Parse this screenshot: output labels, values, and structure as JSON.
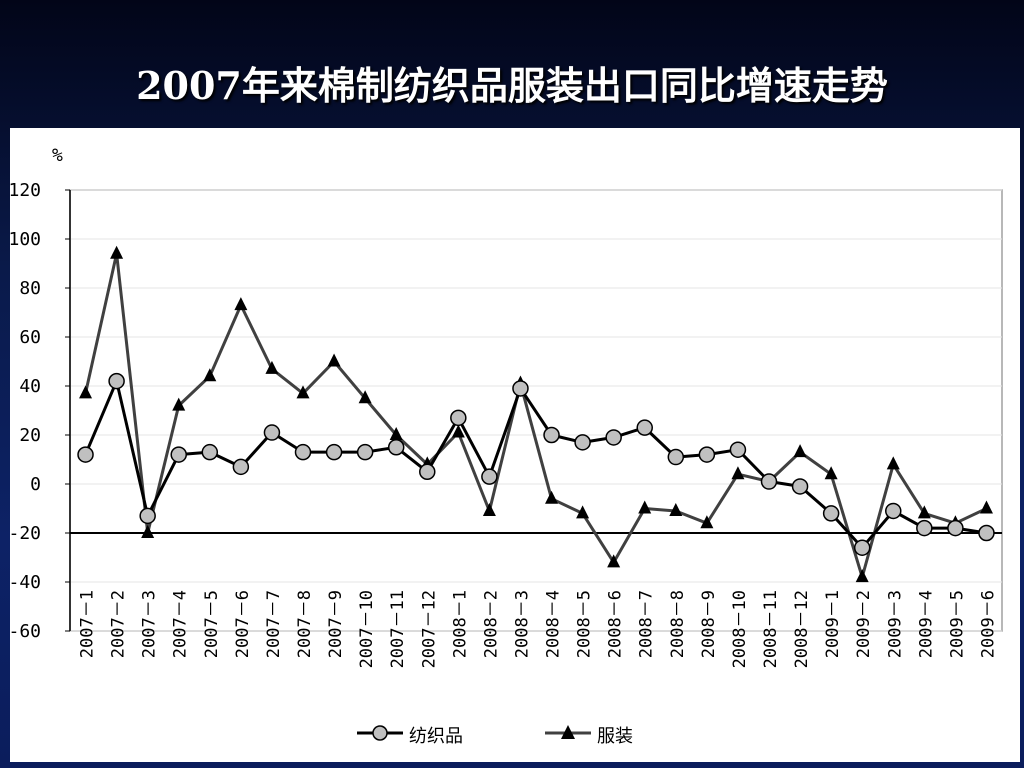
{
  "slide": {
    "title": "2007年来棉制纺织品服装出口同比增速走势"
  },
  "chart_data": {
    "type": "line",
    "title": "",
    "ylabel": "%",
    "xlabel": "",
    "ylim": [
      -60,
      120
    ],
    "yticks": [
      120,
      100,
      80,
      60,
      40,
      20,
      0,
      -20,
      -40,
      -60
    ],
    "reference_line_y": -20,
    "grid": true,
    "legend_position": "bottom",
    "categories": [
      "2007－1",
      "2007－2",
      "2007－3",
      "2007－4",
      "2007－5",
      "2007－6",
      "2007－7",
      "2007－8",
      "2007－9",
      "2007－10",
      "2007－11",
      "2007－12",
      "2008－1",
      "2008－2",
      "2008－3",
      "2008－4",
      "2008－5",
      "2008－6",
      "2008－7",
      "2008－8",
      "2008－9",
      "2008－10",
      "2008－11",
      "2008－12",
      "2009－1",
      "2009－2",
      "2009－3",
      "2009－4",
      "2009－5",
      "2009－6"
    ],
    "series": [
      {
        "name": "纺织品",
        "marker": "circle",
        "color": "#000000",
        "marker_fill": "#c0c0c0",
        "values": [
          12,
          42,
          -13,
          12,
          13,
          7,
          21,
          13,
          13,
          13,
          15,
          5,
          27,
          3,
          39,
          20,
          17,
          19,
          23,
          11,
          12,
          14,
          1,
          -1,
          -12,
          -26,
          -11,
          -18,
          -18,
          -20
        ]
      },
      {
        "name": "服装",
        "marker": "triangle",
        "color": "#404040",
        "marker_fill": "#000000",
        "values": [
          37,
          94,
          -20,
          32,
          44,
          73,
          47,
          37,
          50,
          35,
          20,
          8,
          21,
          -11,
          41,
          -6,
          -12,
          -32,
          -10,
          -11,
          -16,
          4,
          1,
          13,
          4,
          -38,
          8,
          -12,
          -16,
          -10
        ]
      }
    ]
  }
}
